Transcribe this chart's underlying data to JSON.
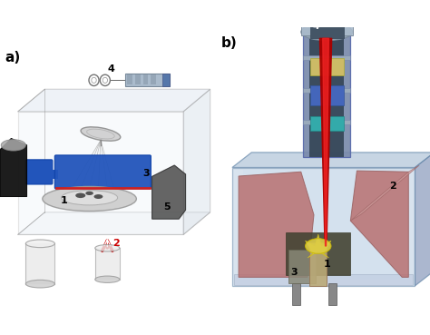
{
  "label_a": "a)",
  "label_b": "b)",
  "bg_color": "#ffffff",
  "fig_width": 4.74,
  "fig_height": 3.69,
  "dpi": 100,
  "arrow_color": "#cc0000",
  "blue_color": "#2255bb",
  "dark_gray": "#444444",
  "light_gray": "#cccccc",
  "med_gray": "#888888",
  "box_face": "#ddeeff",
  "box_edge": "#888888",
  "col_gray": "#7788aa",
  "col_dark": "#445566",
  "teal_color": "#66bbbb",
  "yellow_color": "#ccbb44",
  "blue_comp": "#4466bb",
  "pink_color": "#cc8877",
  "red_beam": "#cc0000",
  "chamber_face": "#99aacc",
  "chamber_light": "#ccd8ee"
}
